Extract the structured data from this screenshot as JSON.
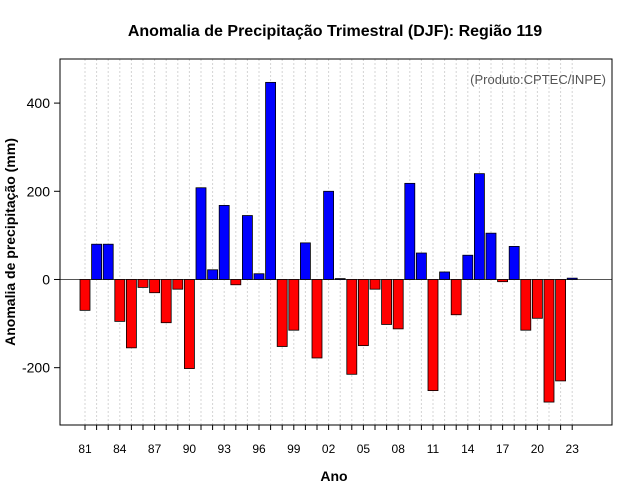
{
  "chart_data": {
    "type": "bar",
    "title": "Anomalia de Precipitação Trimestral (DJF): Região 119",
    "credit": "(Produto:CPTEC/INPE)",
    "xlabel": "Ano",
    "ylabel": "Anomalia de precipitação (mm)",
    "ylim": [
      -330,
      500
    ],
    "yticks": [
      -200,
      0,
      200,
      400
    ],
    "years": [
      1981,
      1982,
      1983,
      1984,
      1985,
      1986,
      1987,
      1988,
      1989,
      1990,
      1991,
      1992,
      1993,
      1994,
      1995,
      1996,
      1997,
      1998,
      1999,
      2000,
      2001,
      2002,
      2003,
      2004,
      2005,
      2006,
      2007,
      2008,
      2009,
      2010,
      2011,
      2012,
      2013,
      2014,
      2015,
      2016,
      2017,
      2018,
      2019,
      2020,
      2021,
      2022,
      2023
    ],
    "values": [
      -70,
      80,
      80,
      -95,
      -155,
      -18,
      -30,
      -98,
      -22,
      -202,
      208,
      22,
      168,
      -12,
      145,
      13,
      447,
      -152,
      -115,
      83,
      -178,
      200,
      2,
      -215,
      -150,
      -22,
      -102,
      -112,
      218,
      60,
      -252,
      17,
      -80,
      55,
      240,
      105,
      -5,
      75,
      -115,
      -88,
      -278,
      -230,
      3
    ],
    "xtick_labels": [
      "81",
      "84",
      "87",
      "90",
      "93",
      "96",
      "99",
      "02",
      "05",
      "08",
      "11",
      "14",
      "17",
      "20",
      "23"
    ],
    "positive_color": "#0000ff",
    "negative_color": "#ff0000"
  }
}
